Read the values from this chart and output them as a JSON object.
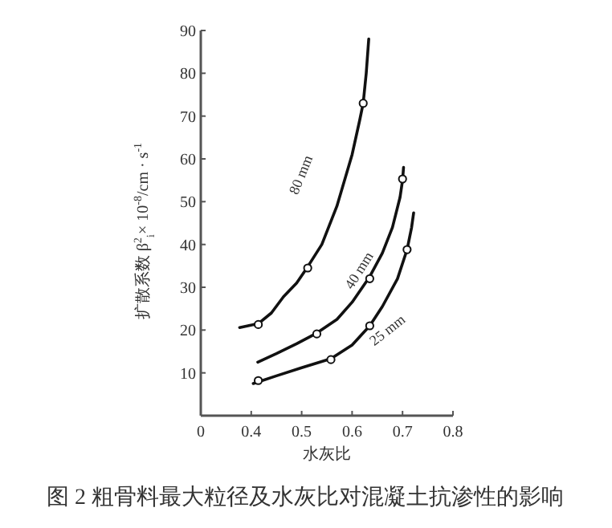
{
  "chart_data": {
    "type": "line",
    "title": "图 2  粗骨料最大粒径及水灰比对混凝土抗渗性的影响",
    "xlabel": "水灰比",
    "ylabel": "扩散系数 β$^{2}$$_{i}$× 10$^{-8}$/cm · s$^{-1}$",
    "xlim": [
      0.3,
      0.8
    ],
    "xticks": [
      {
        "value": 0.3,
        "label": "0"
      },
      0.4,
      0.5,
      0.6,
      0.7,
      0.8
    ],
    "ylim": [
      0,
      90
    ],
    "yticks": [
      10,
      20,
      30,
      40,
      50,
      60,
      70,
      80,
      90
    ],
    "grid": false,
    "series": [
      {
        "name": "80 mm",
        "marker": "none",
        "color": "#111111",
        "x": [
          0.377,
          0.414,
          0.44,
          0.464,
          0.49,
          0.512,
          0.54,
          0.57,
          0.6,
          0.615,
          0.622,
          0.628,
          0.633
        ],
        "values": [
          20.6,
          21.5,
          24,
          27.8,
          31,
          34.8,
          40,
          49,
          61,
          69,
          73,
          80,
          88
        ]
      },
      {
        "name": "40 mm",
        "marker": "none",
        "color": "#111111",
        "x": [
          0.413,
          0.45,
          0.49,
          0.53,
          0.57,
          0.6,
          0.635,
          0.66,
          0.68,
          0.695,
          0.7,
          0.702
        ],
        "values": [
          12.5,
          14.5,
          16.8,
          19.3,
          22.5,
          26.5,
          32.5,
          38,
          44,
          51,
          55,
          58
        ]
      },
      {
        "name": "25 mm",
        "marker": "none",
        "color": "#111111",
        "x": [
          0.404,
          0.45,
          0.5,
          0.558,
          0.6,
          0.635,
          0.66,
          0.69,
          0.709,
          0.718,
          0.722
        ],
        "values": [
          7.5,
          9.3,
          11.2,
          13.3,
          16.5,
          21,
          25.5,
          32,
          38.8,
          44,
          47.4
        ]
      },
      {
        "type": "scatter",
        "marker": "circle",
        "color": "#111111",
        "x": [
          0.414,
          0.512,
          0.622
        ],
        "values": [
          21.3,
          34.5,
          73
        ]
      },
      {
        "type": "scatter",
        "marker": "circle",
        "color": "#111111",
        "x": [
          0.53,
          0.635,
          0.7
        ],
        "values": [
          19.1,
          32,
          55.3
        ]
      },
      {
        "type": "scatter",
        "marker": "circle",
        "color": "#111111",
        "x": [
          0.414,
          0.558,
          0.635,
          0.709
        ],
        "values": [
          8.2,
          13.1,
          21,
          38.8
        ]
      }
    ]
  }
}
